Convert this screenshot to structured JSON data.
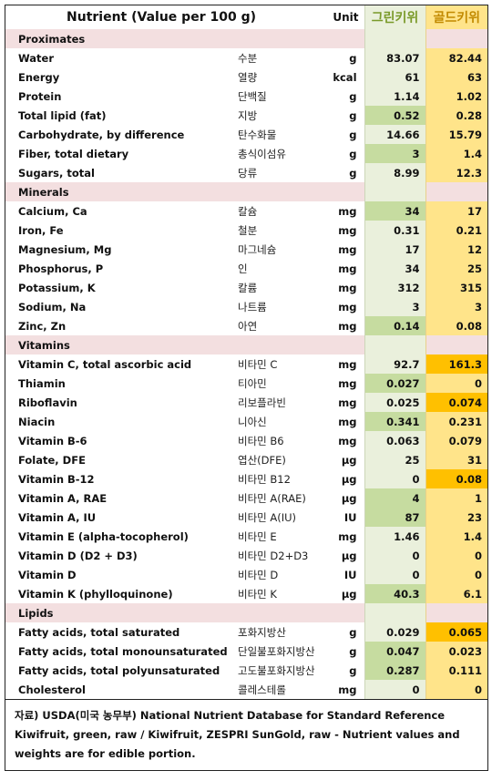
{
  "header": {
    "title": "Nutrient (Value per 100 g)",
    "unit": "Unit",
    "green": "그린키위",
    "gold": "골드키위"
  },
  "sections": [
    {
      "title": "Proximates",
      "rows": [
        {
          "en": "Water",
          "ko": "수분",
          "unit": "g",
          "green": "83.07",
          "gold": "82.44",
          "hl": ""
        },
        {
          "en": "Energy",
          "ko": "열량",
          "unit": "kcal",
          "green": "61",
          "gold": "63",
          "hl": ""
        },
        {
          "en": "Protein",
          "ko": "단백질",
          "unit": "g",
          "green": "1.14",
          "gold": "1.02",
          "hl": ""
        },
        {
          "en": "Total lipid (fat)",
          "ko": "지방",
          "unit": "g",
          "green": "0.52",
          "gold": "0.28",
          "hl": "green"
        },
        {
          "en": "Carbohydrate, by difference",
          "ko": "탄수화물",
          "unit": "g",
          "green": "14.66",
          "gold": "15.79",
          "hl": ""
        },
        {
          "en": "Fiber, total dietary",
          "ko": "총식이섬유",
          "unit": "g",
          "green": "3",
          "gold": "1.4",
          "hl": "green"
        },
        {
          "en": "Sugars, total",
          "ko": "당류",
          "unit": "g",
          "green": "8.99",
          "gold": "12.3",
          "hl": ""
        }
      ]
    },
    {
      "title": "Minerals",
      "rows": [
        {
          "en": "Calcium, Ca",
          "ko": "칼슘",
          "unit": "mg",
          "green": "34",
          "gold": "17",
          "hl": "green"
        },
        {
          "en": "Iron, Fe",
          "ko": "철분",
          "unit": "mg",
          "green": "0.31",
          "gold": "0.21",
          "hl": ""
        },
        {
          "en": "Magnesium, Mg",
          "ko": "마그네슘",
          "unit": "mg",
          "green": "17",
          "gold": "12",
          "hl": ""
        },
        {
          "en": "Phosphorus, P",
          "ko": "인",
          "unit": "mg",
          "green": "34",
          "gold": "25",
          "hl": ""
        },
        {
          "en": "Potassium, K",
          "ko": "칼륨",
          "unit": "mg",
          "green": "312",
          "gold": "315",
          "hl": ""
        },
        {
          "en": "Sodium, Na",
          "ko": "나트륨",
          "unit": "mg",
          "green": "3",
          "gold": "3",
          "hl": ""
        },
        {
          "en": "Zinc, Zn",
          "ko": "아연",
          "unit": "mg",
          "green": "0.14",
          "gold": "0.08",
          "hl": "green"
        }
      ]
    },
    {
      "title": "Vitamins",
      "rows": [
        {
          "en": "Vitamin C, total ascorbic acid",
          "ko": "비타민 C",
          "unit": "mg",
          "green": "92.7",
          "gold": "161.3",
          "hl": "gold"
        },
        {
          "en": "Thiamin",
          "ko": "티아민",
          "unit": "mg",
          "green": "0.027",
          "gold": "0",
          "hl": "green"
        },
        {
          "en": "Riboflavin",
          "ko": "리보플라빈",
          "unit": "mg",
          "green": "0.025",
          "gold": "0.074",
          "hl": "gold"
        },
        {
          "en": "Niacin",
          "ko": "니아신",
          "unit": "mg",
          "green": "0.341",
          "gold": "0.231",
          "hl": "green"
        },
        {
          "en": "Vitamin B-6",
          "ko": "비타민 B6",
          "unit": "mg",
          "green": "0.063",
          "gold": "0.079",
          "hl": ""
        },
        {
          "en": "Folate, DFE",
          "ko": "엽산(DFE)",
          "unit": "µg",
          "green": "25",
          "gold": "31",
          "hl": ""
        },
        {
          "en": "Vitamin B-12",
          "ko": "비타민 B12",
          "unit": "µg",
          "green": "0",
          "gold": "0.08",
          "hl": "gold"
        },
        {
          "en": "Vitamin A, RAE",
          "ko": "비타민 A(RAE)",
          "unit": "µg",
          "green": "4",
          "gold": "1",
          "hl": "green"
        },
        {
          "en": "Vitamin A, IU",
          "ko": "비타민 A(IU)",
          "unit": "IU",
          "green": "87",
          "gold": "23",
          "hl": "green"
        },
        {
          "en": "Vitamin E (alpha-tocopherol)",
          "ko": "비타민 E",
          "unit": "mg",
          "green": "1.46",
          "gold": "1.4",
          "hl": ""
        },
        {
          "en": "Vitamin D (D2 + D3)",
          "ko": "비타민 D2+D3",
          "unit": "µg",
          "green": "0",
          "gold": "0",
          "hl": ""
        },
        {
          "en": "Vitamin D",
          "ko": "비타민 D",
          "unit": "IU",
          "green": "0",
          "gold": "0",
          "hl": ""
        },
        {
          "en": "Vitamin K (phylloquinone)",
          "ko": "비타민 K",
          "unit": "µg",
          "green": "40.3",
          "gold": "6.1",
          "hl": "green"
        }
      ]
    },
    {
      "title": "Lipids",
      "rows": [
        {
          "en": "Fatty acids, total saturated",
          "ko": "포화지방산",
          "unit": "g",
          "green": "0.029",
          "gold": "0.065",
          "hl": "gold"
        },
        {
          "en": "Fatty acids, total monounsaturated",
          "ko": "단일불포화지방산",
          "unit": "g",
          "green": "0.047",
          "gold": "0.023",
          "hl": "green"
        },
        {
          "en": "Fatty acids, total polyunsaturated",
          "ko": "고도불포화지방산",
          "unit": "g",
          "green": "0.287",
          "gold": "0.111",
          "hl": "green"
        },
        {
          "en": "Cholesterol",
          "ko": "콜레스테롤",
          "unit": "mg",
          "green": "0",
          "gold": "0",
          "hl": ""
        }
      ]
    }
  ],
  "footer": {
    "line1": "자료) USDA(미국 농무부) National Nutrient Database for Standard Reference",
    "line2": "Kiwifruit, green, raw / Kiwifruit, ZESPRI SunGold, raw - Nutrient values and",
    "line3": "weights are for edible portion."
  }
}
